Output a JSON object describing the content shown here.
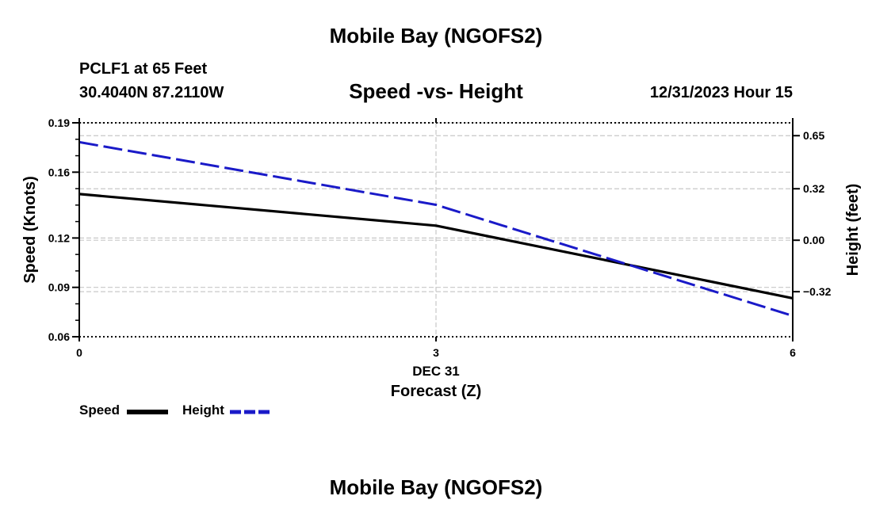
{
  "chart_data": {
    "type": "line",
    "title": "Mobile Bay (NGOFS2)",
    "subtitle": "Speed -vs- Height",
    "station": "PCLF1 at 65 Feet",
    "coordinates": "30.4040N  87.2110W",
    "valid_time": "12/31/2023 Hour 15",
    "footer_title": "Mobile Bay (NGOFS2)",
    "xlabel": "Forecast (Z)",
    "xlabel_date": "DEC 31",
    "x_ticks": [
      0,
      3,
      6
    ],
    "xlim": [
      0,
      6
    ],
    "ylabel_left": "Speed (Knots)",
    "ylim_left": [
      0.06,
      0.19
    ],
    "y_ticks_left": [
      "0.06",
      "0.09",
      "0.12",
      "0.16",
      "0.19"
    ],
    "y_tick_values_left": [
      0.06,
      0.09,
      0.12,
      0.16,
      0.19
    ],
    "ylabel_right": "Height (feet)",
    "ylim_right": [
      -0.6,
      0.73
    ],
    "y_ticks_right": [
      "−0.32",
      "0.00",
      "0.32",
      "0.65"
    ],
    "y_tick_values_right": [
      -0.32,
      0.0,
      0.32,
      0.65
    ],
    "series": [
      {
        "name": "Speed",
        "axis": "left",
        "color": "#000000",
        "style": "solid",
        "x": [
          0,
          3,
          6
        ],
        "values": [
          0.1467,
          0.1275,
          0.0834
        ]
      },
      {
        "name": "Height",
        "axis": "right",
        "color": "#1a1ac8",
        "style": "dashed",
        "x": [
          0,
          3,
          6
        ],
        "values": [
          0.61,
          0.22,
          -0.47
        ]
      }
    ],
    "grid": true,
    "legend": "bottom-left"
  }
}
